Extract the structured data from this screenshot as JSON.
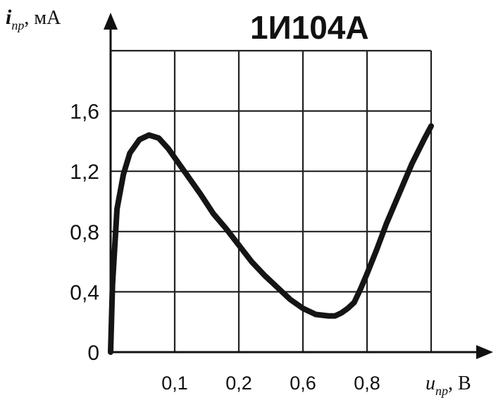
{
  "chart_data": {
    "type": "line",
    "title": "1И104А",
    "ylabel": {
      "symbol": "i",
      "subscript": "пр",
      "unit": ", мА"
    },
    "xlabel": {
      "symbol": "u",
      "subscript": "пр",
      "unit": ", В"
    },
    "y_ticks": [
      "0",
      "0,4",
      "0,8",
      "1,2",
      "1,6"
    ],
    "x_ticks": [
      "0,1",
      "0,2",
      "0,6",
      "0,8"
    ],
    "ylim": [
      0,
      2.0
    ],
    "grid": true,
    "series": [
      {
        "values_note": "x given in grid-division units (tick labels are non-uniform); y in мА",
        "x": [
          0,
          0.03,
          0.1,
          0.2,
          0.3,
          0.45,
          0.6,
          0.75,
          0.9,
          1.05,
          1.2,
          1.4,
          1.6,
          1.8,
          2.0,
          2.2,
          2.4,
          2.6,
          2.8,
          3.0,
          3.2,
          3.4,
          3.5,
          3.6,
          3.7,
          3.8,
          3.9,
          4.0,
          4.15,
          4.3,
          4.5,
          4.7,
          4.9,
          5.0
        ],
        "y": [
          0.0,
          0.45,
          0.95,
          1.18,
          1.32,
          1.41,
          1.44,
          1.42,
          1.35,
          1.26,
          1.17,
          1.05,
          0.92,
          0.82,
          0.71,
          0.6,
          0.51,
          0.43,
          0.35,
          0.29,
          0.25,
          0.24,
          0.24,
          0.26,
          0.29,
          0.33,
          0.42,
          0.52,
          0.68,
          0.85,
          1.05,
          1.25,
          1.42,
          1.5
        ]
      }
    ]
  }
}
